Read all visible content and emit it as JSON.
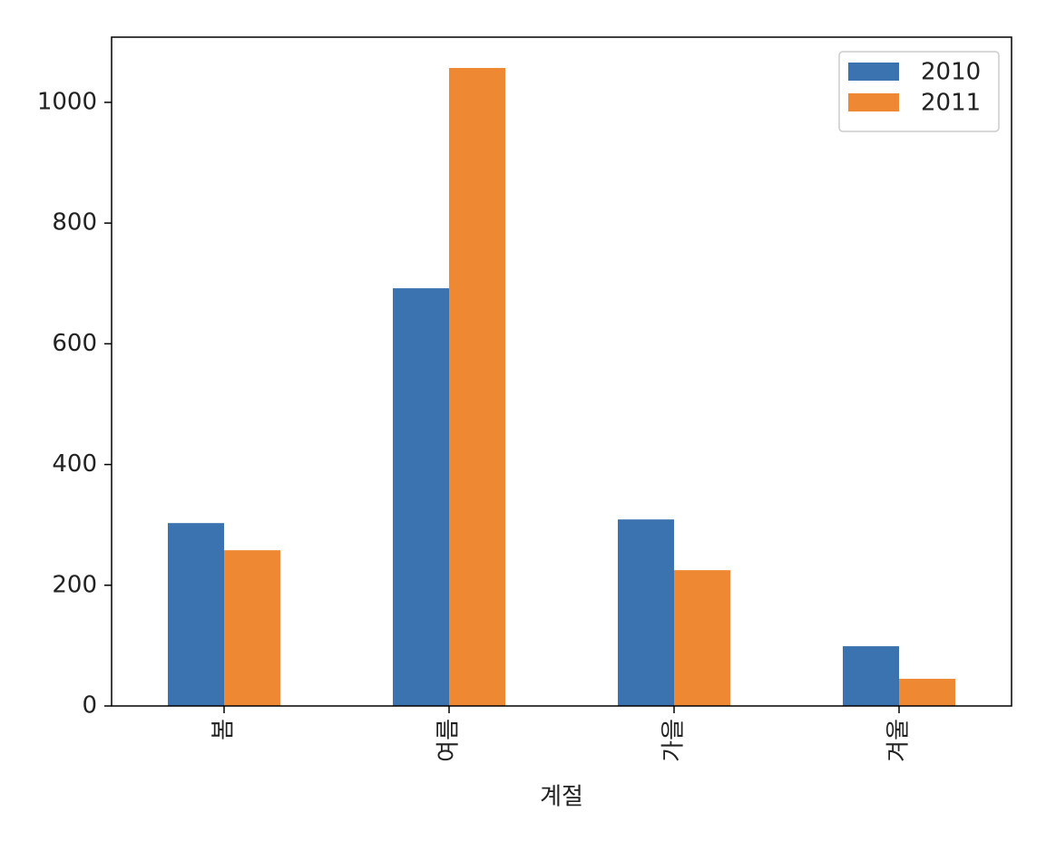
{
  "chart_data": {
    "type": "bar",
    "xlabel": "계절",
    "categories": [
      "봄",
      "여름",
      "가을",
      "겨울"
    ],
    "series": [
      {
        "name": "2010",
        "color": "#3a73b0",
        "values": [
          303,
          692,
          309,
          99
        ]
      },
      {
        "name": "2011",
        "color": "#ee8833",
        "values": [
          258,
          1057,
          225,
          45
        ]
      }
    ],
    "ylim": [
      0,
      1108
    ],
    "yticks": [
      0,
      200,
      400,
      600,
      800,
      1000
    ],
    "grid": false,
    "legend": "upper right"
  }
}
